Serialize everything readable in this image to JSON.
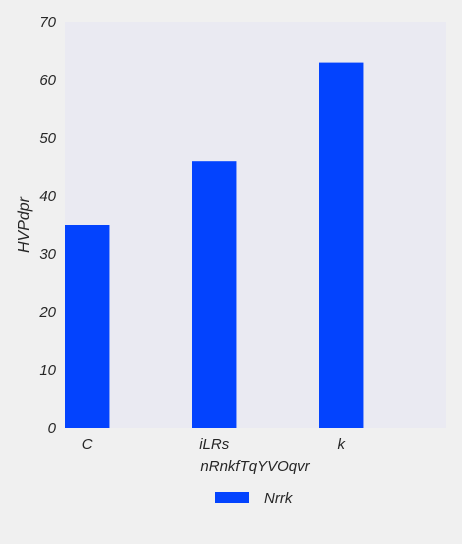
{
  "chart_data": {
    "type": "bar",
    "categories": [
      "C",
      "iLRs",
      "k"
    ],
    "series": [
      {
        "name": "Nrrk",
        "values": [
          35,
          46,
          63
        ]
      }
    ],
    "title": "",
    "xlabel": "nRnkfTqYVOqvr",
    "ylabel": "HVPdpr",
    "ylim": [
      0,
      70
    ],
    "yticks": [
      0,
      10,
      20,
      30,
      40,
      50,
      60,
      70
    ],
    "grid": false,
    "legend": "bottom-center",
    "colors": {
      "bar": "#0343fe",
      "plot_background": "#eaeaf2",
      "page_background": "#f0f0f0"
    }
  }
}
